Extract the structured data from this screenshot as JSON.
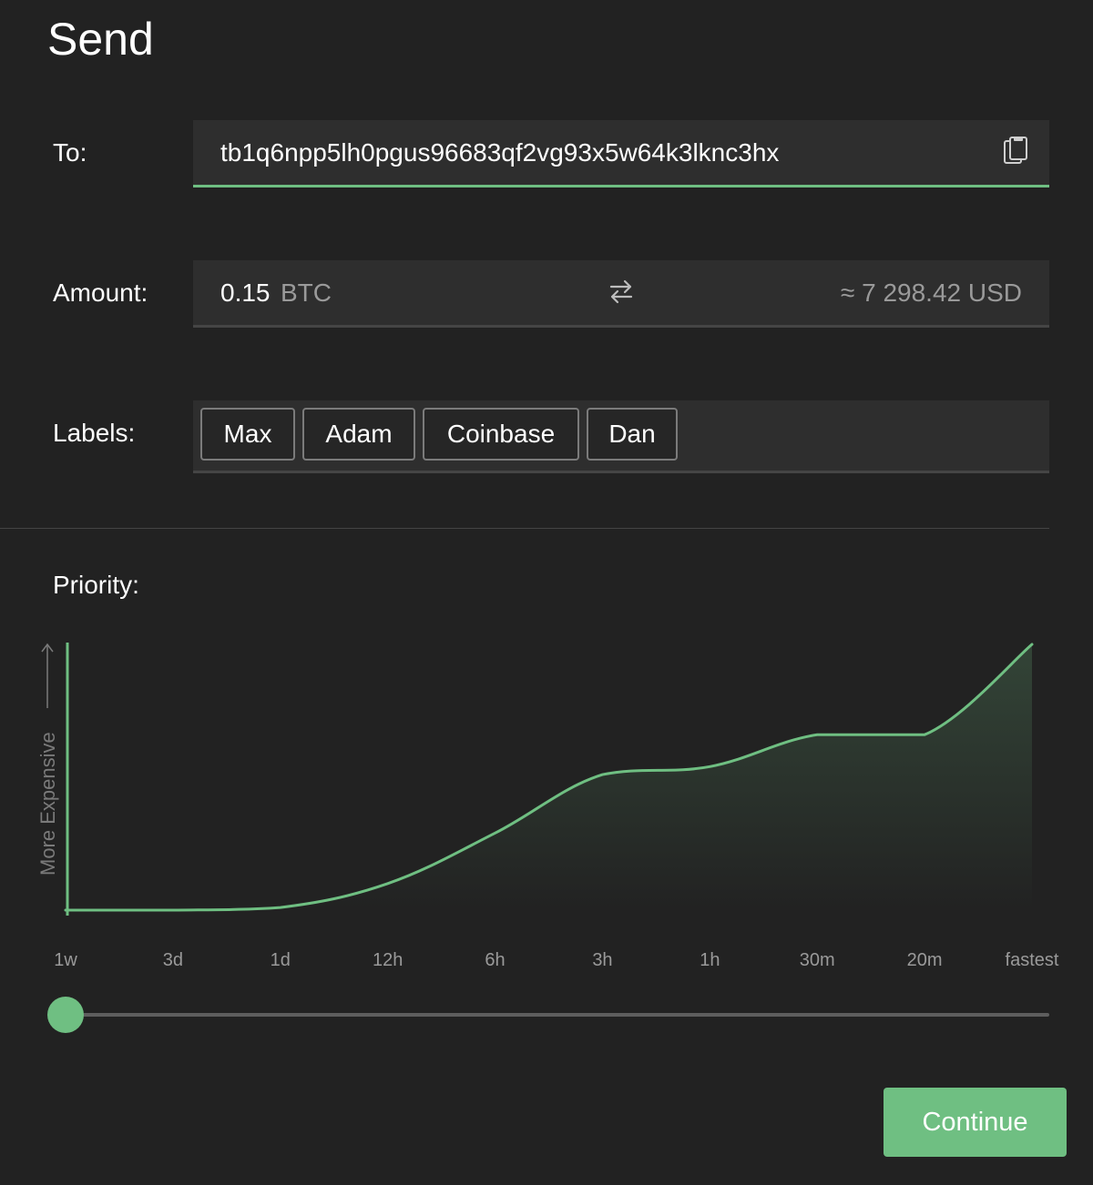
{
  "title": "Send",
  "to": {
    "label": "To:",
    "value": "tb1q6npp5lh0pgus96683qf2vg93x5w64k3lknc3hx",
    "paste_icon": "clipboard-icon"
  },
  "amount": {
    "label": "Amount:",
    "value": "0.15",
    "unit": "BTC",
    "swap_icon": "swap-arrows-icon",
    "fiat": "≈ 7 298.42 USD"
  },
  "labels": {
    "label": "Labels:",
    "items": [
      "Max",
      "Adam",
      "Coinbase",
      "Dan"
    ]
  },
  "priority": {
    "label": "Priority:",
    "selected": "1w",
    "slider_fraction": 0
  },
  "chart_data": {
    "type": "area",
    "ylabel": "More Expensive",
    "xlabel": "",
    "categories": [
      "1w",
      "3d",
      "1d",
      "12h",
      "6h",
      "3h",
      "1h",
      "30m",
      "20m",
      "fastest"
    ],
    "values": [
      0,
      0,
      0.01,
      0.1,
      0.29,
      0.51,
      0.54,
      0.66,
      0.66,
      1.0
    ],
    "ylim": [
      0,
      1
    ],
    "grid": false,
    "color": "#6fbf82"
  },
  "continue_button": "Continue",
  "colors": {
    "background": "#222222",
    "field": "#2e2e2e",
    "accent": "#6fbf82"
  }
}
